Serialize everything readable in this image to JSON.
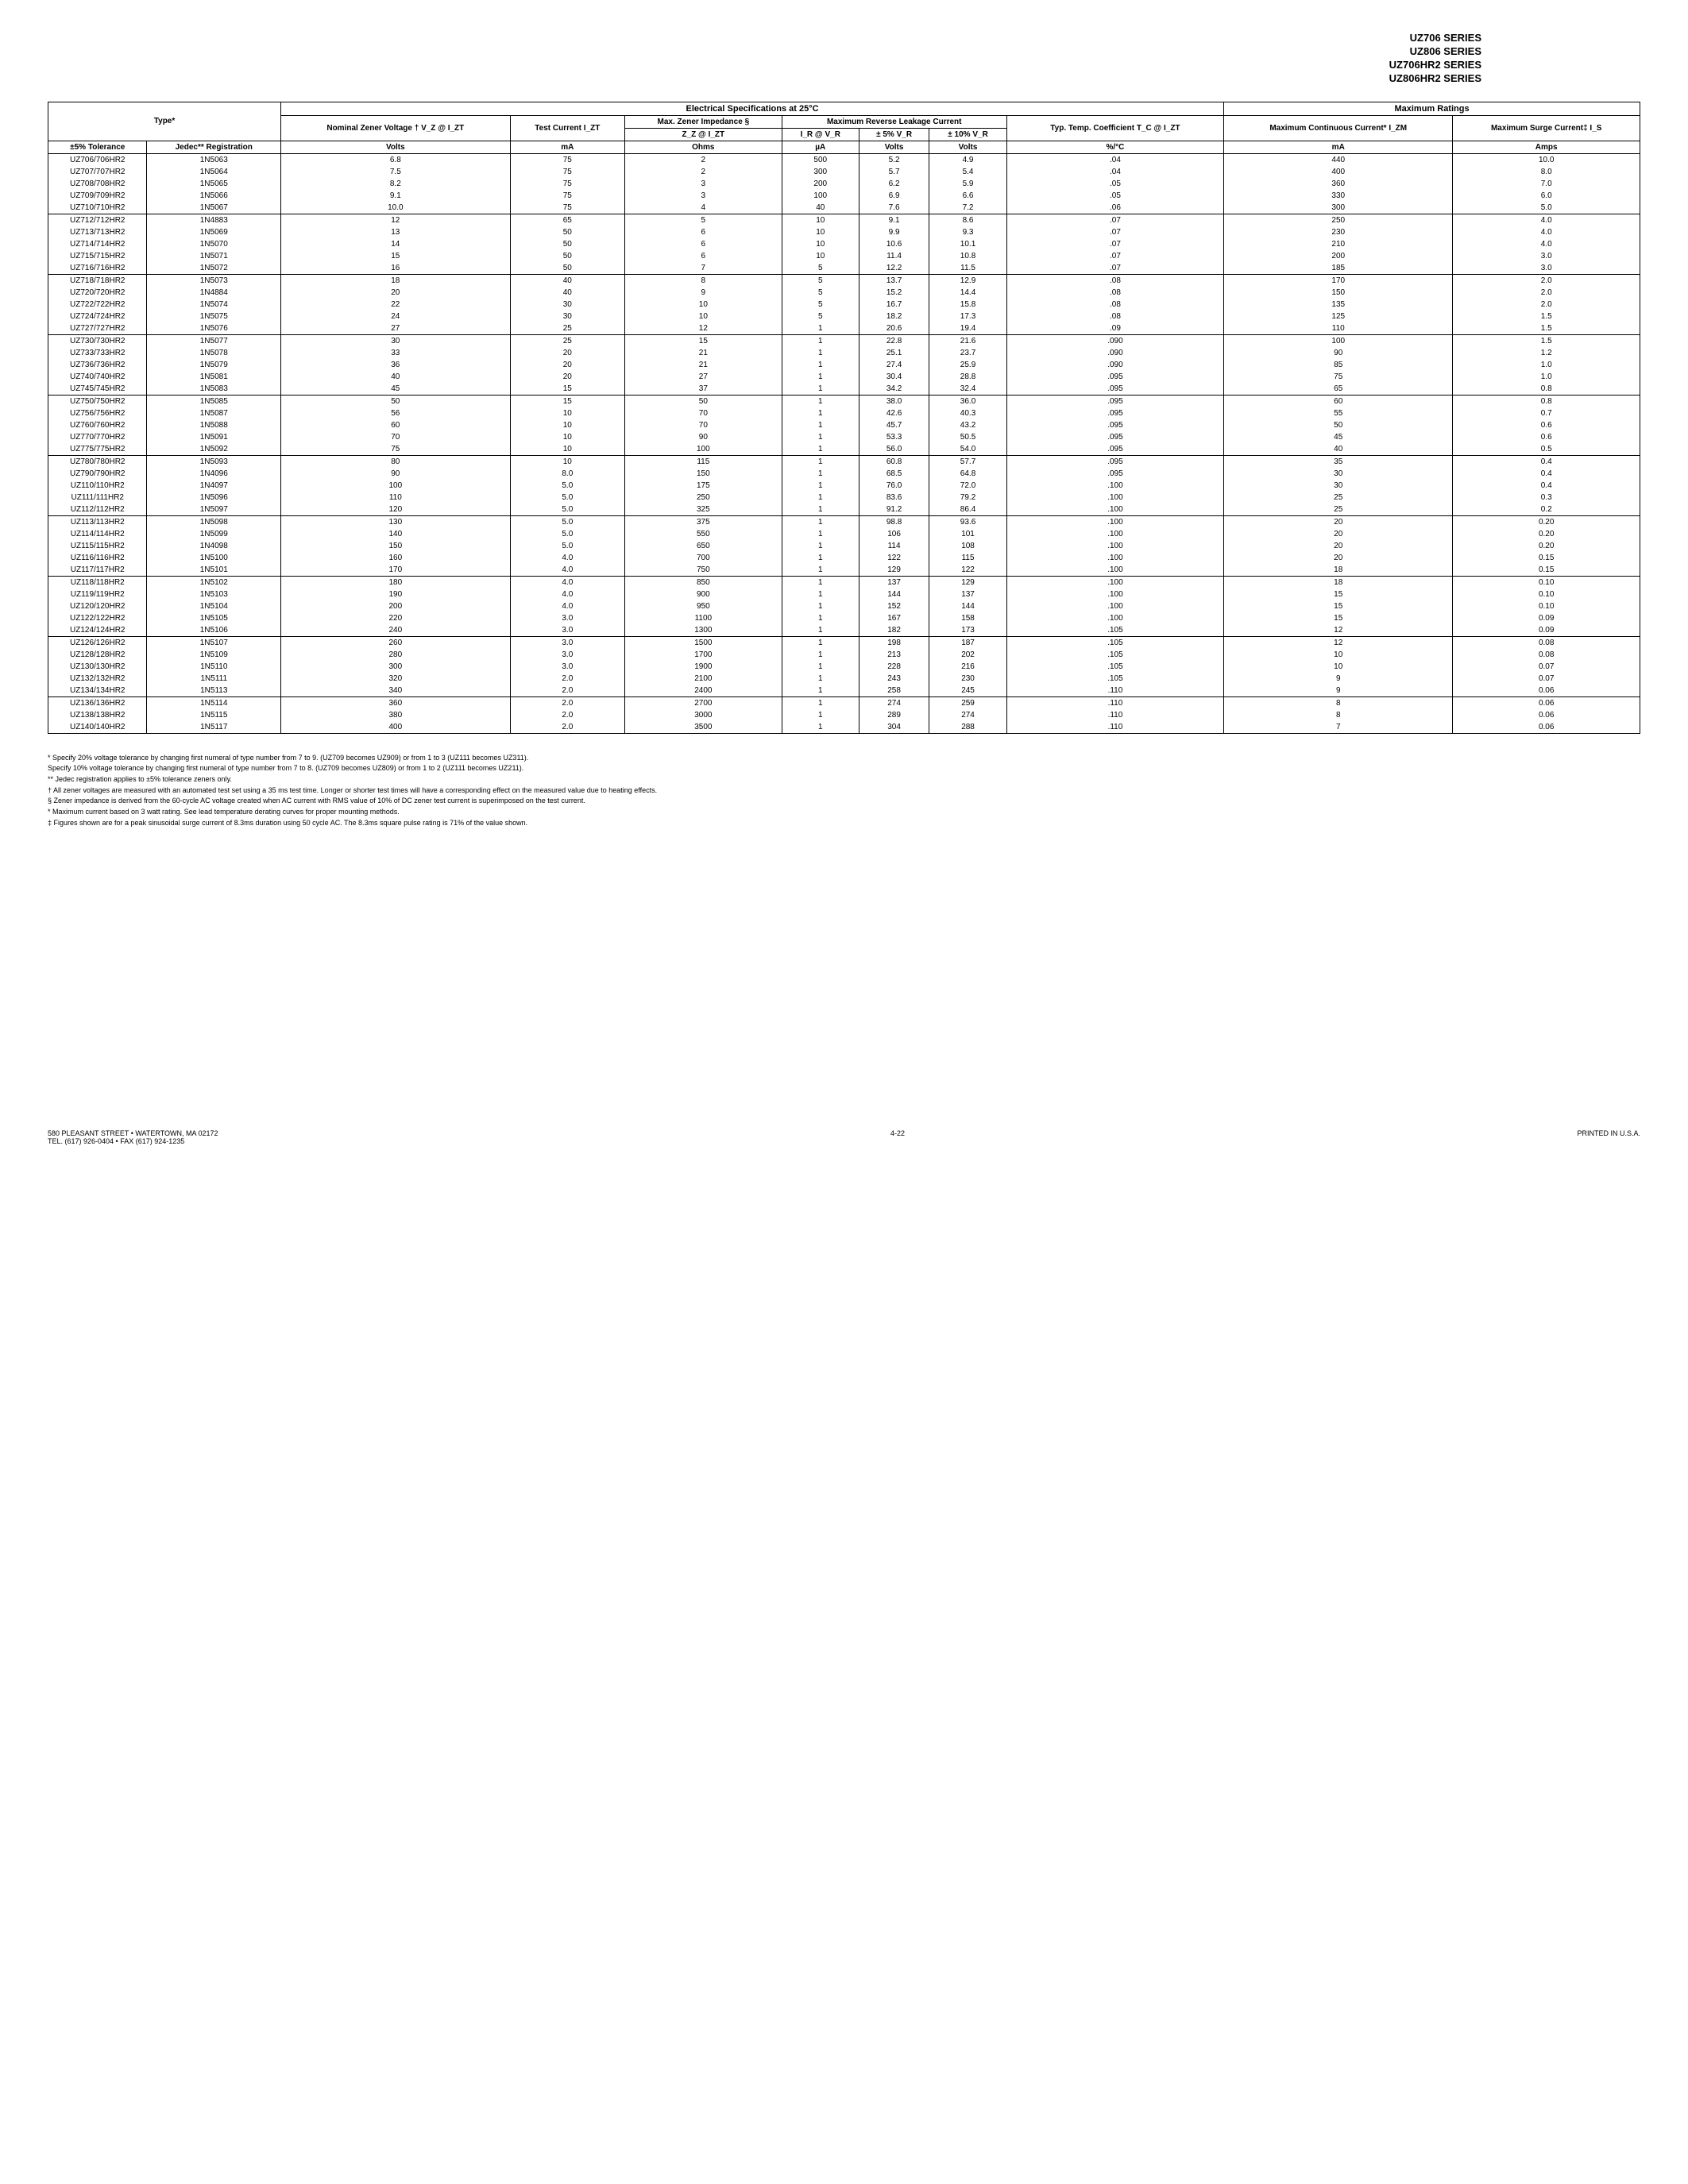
{
  "header_series": [
    "UZ706 SERIES",
    "UZ806 SERIES",
    "UZ706HR2 SERIES",
    "UZ806HR2 SERIES"
  ],
  "table": {
    "section_elec": "Electrical Specifications at 25°C",
    "section_max": "Maximum Ratings",
    "col_type": "Type*",
    "col_nominal": "Nominal Zener Voltage † V_Z @ I_ZT",
    "col_test": "Test Current I_ZT",
    "col_max_imp": "Max. Zener Impedance §",
    "col_max_rev": "Maximum Reverse Leakage Current",
    "col_zz": "Z_Z @ I_ZT",
    "col_ir": "I_R @ V_R",
    "col_5pct": "± 5% V_R",
    "col_10pct": "± 10% V_R",
    "col_temp": "Typ. Temp. Coefficient T_C @ I_ZT",
    "col_max_cont": "Maximum Continuous Current* I_ZM",
    "col_max_surge": "Maximum Surge Current‡ I_S",
    "col_tol": "±5% Tolerance",
    "col_jedec": "Jedec** Registration",
    "unit_volts": "Volts",
    "unit_ma": "mA",
    "unit_ohms": "Ohms",
    "unit_ua": "µA",
    "unit_pctc": "%/°C",
    "unit_amps": "Amps"
  },
  "groups": [
    [
      [
        "UZ706/706HR2",
        "1N5063",
        "6.8",
        "75",
        "2",
        "500",
        "5.2",
        "4.9",
        ".04",
        "440",
        "10.0"
      ],
      [
        "UZ707/707HR2",
        "1N5064",
        "7.5",
        "75",
        "2",
        "300",
        "5.7",
        "5.4",
        ".04",
        "400",
        "8.0"
      ],
      [
        "UZ708/708HR2",
        "1N5065",
        "8.2",
        "75",
        "3",
        "200",
        "6.2",
        "5.9",
        ".05",
        "360",
        "7.0"
      ],
      [
        "UZ709/709HR2",
        "1N5066",
        "9.1",
        "75",
        "3",
        "100",
        "6.9",
        "6.6",
        ".05",
        "330",
        "6.0"
      ],
      [
        "UZ710/710HR2",
        "1N5067",
        "10.0",
        "75",
        "4",
        "40",
        "7.6",
        "7.2",
        ".06",
        "300",
        "5.0"
      ]
    ],
    [
      [
        "UZ712/712HR2",
        "1N4883",
        "12",
        "65",
        "5",
        "10",
        "9.1",
        "8.6",
        ".07",
        "250",
        "4.0"
      ],
      [
        "UZ713/713HR2",
        "1N5069",
        "13",
        "50",
        "6",
        "10",
        "9.9",
        "9.3",
        ".07",
        "230",
        "4.0"
      ],
      [
        "UZ714/714HR2",
        "1N5070",
        "14",
        "50",
        "6",
        "10",
        "10.6",
        "10.1",
        ".07",
        "210",
        "4.0"
      ],
      [
        "UZ715/715HR2",
        "1N5071",
        "15",
        "50",
        "6",
        "10",
        "11.4",
        "10.8",
        ".07",
        "200",
        "3.0"
      ],
      [
        "UZ716/716HR2",
        "1N5072",
        "16",
        "50",
        "7",
        "5",
        "12.2",
        "11.5",
        ".07",
        "185",
        "3.0"
      ]
    ],
    [
      [
        "UZ718/718HR2",
        "1N5073",
        "18",
        "40",
        "8",
        "5",
        "13.7",
        "12.9",
        ".08",
        "170",
        "2.0"
      ],
      [
        "UZ720/720HR2",
        "1N4884",
        "20",
        "40",
        "9",
        "5",
        "15.2",
        "14.4",
        ".08",
        "150",
        "2.0"
      ],
      [
        "UZ722/722HR2",
        "1N5074",
        "22",
        "30",
        "10",
        "5",
        "16.7",
        "15.8",
        ".08",
        "135",
        "2.0"
      ],
      [
        "UZ724/724HR2",
        "1N5075",
        "24",
        "30",
        "10",
        "5",
        "18.2",
        "17.3",
        ".08",
        "125",
        "1.5"
      ],
      [
        "UZ727/727HR2",
        "1N5076",
        "27",
        "25",
        "12",
        "1",
        "20.6",
        "19.4",
        ".09",
        "110",
        "1.5"
      ]
    ],
    [
      [
        "UZ730/730HR2",
        "1N5077",
        "30",
        "25",
        "15",
        "1",
        "22.8",
        "21.6",
        ".090",
        "100",
        "1.5"
      ],
      [
        "UZ733/733HR2",
        "1N5078",
        "33",
        "20",
        "21",
        "1",
        "25.1",
        "23.7",
        ".090",
        "90",
        "1.2"
      ],
      [
        "UZ736/736HR2",
        "1N5079",
        "36",
        "20",
        "21",
        "1",
        "27.4",
        "25.9",
        ".090",
        "85",
        "1.0"
      ],
      [
        "UZ740/740HR2",
        "1N5081",
        "40",
        "20",
        "27",
        "1",
        "30.4",
        "28.8",
        ".095",
        "75",
        "1.0"
      ],
      [
        "UZ745/745HR2",
        "1N5083",
        "45",
        "15",
        "37",
        "1",
        "34.2",
        "32.4",
        ".095",
        "65",
        "0.8"
      ]
    ],
    [
      [
        "UZ750/750HR2",
        "1N5085",
        "50",
        "15",
        "50",
        "1",
        "38.0",
        "36.0",
        ".095",
        "60",
        "0.8"
      ],
      [
        "UZ756/756HR2",
        "1N5087",
        "56",
        "10",
        "70",
        "1",
        "42.6",
        "40.3",
        ".095",
        "55",
        "0.7"
      ],
      [
        "UZ760/760HR2",
        "1N5088",
        "60",
        "10",
        "70",
        "1",
        "45.7",
        "43.2",
        ".095",
        "50",
        "0.6"
      ],
      [
        "UZ770/770HR2",
        "1N5091",
        "70",
        "10",
        "90",
        "1",
        "53.3",
        "50.5",
        ".095",
        "45",
        "0.6"
      ],
      [
        "UZ775/775HR2",
        "1N5092",
        "75",
        "10",
        "100",
        "1",
        "56.0",
        "54.0",
        ".095",
        "40",
        "0.5"
      ]
    ],
    [
      [
        "UZ780/780HR2",
        "1N5093",
        "80",
        "10",
        "115",
        "1",
        "60.8",
        "57.7",
        ".095",
        "35",
        "0.4"
      ],
      [
        "UZ790/790HR2",
        "1N4096",
        "90",
        "8.0",
        "150",
        "1",
        "68.5",
        "64.8",
        ".095",
        "30",
        "0.4"
      ],
      [
        "UZ110/110HR2",
        "1N4097",
        "100",
        "5.0",
        "175",
        "1",
        "76.0",
        "72.0",
        ".100",
        "30",
        "0.4"
      ],
      [
        "UZ111/111HR2",
        "1N5096",
        "110",
        "5.0",
        "250",
        "1",
        "83.6",
        "79.2",
        ".100",
        "25",
        "0.3"
      ],
      [
        "UZ112/112HR2",
        "1N5097",
        "120",
        "5.0",
        "325",
        "1",
        "91.2",
        "86.4",
        ".100",
        "25",
        "0.2"
      ]
    ],
    [
      [
        "UZ113/113HR2",
        "1N5098",
        "130",
        "5.0",
        "375",
        "1",
        "98.8",
        "93.6",
        ".100",
        "20",
        "0.20"
      ],
      [
        "UZ114/114HR2",
        "1N5099",
        "140",
        "5.0",
        "550",
        "1",
        "106",
        "101",
        ".100",
        "20",
        "0.20"
      ],
      [
        "UZ115/115HR2",
        "1N4098",
        "150",
        "5.0",
        "650",
        "1",
        "114",
        "108",
        ".100",
        "20",
        "0.20"
      ],
      [
        "UZ116/116HR2",
        "1N5100",
        "160",
        "4.0",
        "700",
        "1",
        "122",
        "115",
        ".100",
        "20",
        "0.15"
      ],
      [
        "UZ117/117HR2",
        "1N5101",
        "170",
        "4.0",
        "750",
        "1",
        "129",
        "122",
        ".100",
        "18",
        "0.15"
      ]
    ],
    [
      [
        "UZ118/118HR2",
        "1N5102",
        "180",
        "4.0",
        "850",
        "1",
        "137",
        "129",
        ".100",
        "18",
        "0.10"
      ],
      [
        "UZ119/119HR2",
        "1N5103",
        "190",
        "4.0",
        "900",
        "1",
        "144",
        "137",
        ".100",
        "15",
        "0.10"
      ],
      [
        "UZ120/120HR2",
        "1N5104",
        "200",
        "4.0",
        "950",
        "1",
        "152",
        "144",
        ".100",
        "15",
        "0.10"
      ],
      [
        "UZ122/122HR2",
        "1N5105",
        "220",
        "3.0",
        "1100",
        "1",
        "167",
        "158",
        ".100",
        "15",
        "0.09"
      ],
      [
        "UZ124/124HR2",
        "1N5106",
        "240",
        "3.0",
        "1300",
        "1",
        "182",
        "173",
        ".105",
        "12",
        "0.09"
      ]
    ],
    [
      [
        "UZ126/126HR2",
        "1N5107",
        "260",
        "3.0",
        "1500",
        "1",
        "198",
        "187",
        ".105",
        "12",
        "0.08"
      ],
      [
        "UZ128/128HR2",
        "1N5109",
        "280",
        "3.0",
        "1700",
        "1",
        "213",
        "202",
        ".105",
        "10",
        "0.08"
      ],
      [
        "UZ130/130HR2",
        "1N5110",
        "300",
        "3.0",
        "1900",
        "1",
        "228",
        "216",
        ".105",
        "10",
        "0.07"
      ],
      [
        "UZ132/132HR2",
        "1N5111",
        "320",
        "2.0",
        "2100",
        "1",
        "243",
        "230",
        ".105",
        "9",
        "0.07"
      ],
      [
        "UZ134/134HR2",
        "1N5113",
        "340",
        "2.0",
        "2400",
        "1",
        "258",
        "245",
        ".110",
        "9",
        "0.06"
      ]
    ],
    [
      [
        "UZ136/136HR2",
        "1N5114",
        "360",
        "2.0",
        "2700",
        "1",
        "274",
        "259",
        ".110",
        "8",
        "0.06"
      ],
      [
        "UZ138/138HR2",
        "1N5115",
        "380",
        "2.0",
        "3000",
        "1",
        "289",
        "274",
        ".110",
        "8",
        "0.06"
      ],
      [
        "UZ140/140HR2",
        "1N5117",
        "400",
        "2.0",
        "3500",
        "1",
        "304",
        "288",
        ".110",
        "7",
        "0.06"
      ]
    ]
  ],
  "footnotes": [
    "* Specify 20% voltage tolerance by changing first numeral of type number from 7 to 9. (UZ709 becomes UZ909) or from 1 to 3 (UZ111 becomes UZ311).",
    "Specify 10% voltage tolerance by changing first numeral of type number from 7 to 8. (UZ709 becomes UZ809) or from 1 to 2 (UZ111 becomes UZ211).",
    "** Jedec registration applies to ±5% tolerance zeners only.",
    "† All zener voltages are measured with an automated test set using a 35 ms test time. Longer or shorter test times will have a corresponding effect on the measured value due to heating effects.",
    "§ Zener impedance is derived from the 60-cycle AC voltage created when AC current with RMS value of 10% of DC zener test current is superimposed on the test current.",
    "* Maximum current based on 3 watt rating. See lead temperature derating curves for proper mounting methods.",
    "‡ Figures shown are for a peak sinusoidal surge current of 8.3ms duration using 50 cycle AC. The 8.3ms square pulse rating is 71% of the value shown."
  ],
  "footer": {
    "address": "580 PLEASANT STREET • WATERTOWN, MA 02172",
    "tel": "TEL. (617) 926-0404 • FAX (617) 924-1235",
    "page": "4-22",
    "printed": "PRINTED IN U.S.A."
  }
}
